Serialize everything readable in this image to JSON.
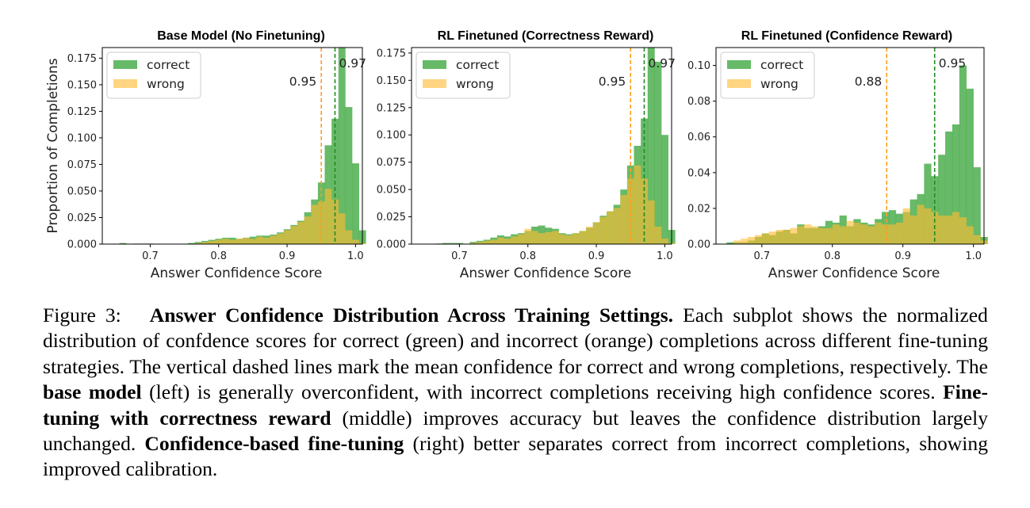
{
  "chart_data": [
    {
      "type": "bar",
      "title": "Base Model (No Finetuning)",
      "xlabel": "Answer Confidence Score",
      "ylabel": "Proportion of Completions",
      "xlim": [
        0.63,
        1.01
      ],
      "ylim": [
        0,
        0.185
      ],
      "xticks": [
        0.7,
        0.8,
        0.9,
        1.0
      ],
      "xtick_labels": [
        "0.7",
        "0.8",
        "0.9",
        "1.0"
      ],
      "yticks": [
        0,
        0.025,
        0.05,
        0.075,
        0.1,
        0.125,
        0.15,
        0.175
      ],
      "ytick_labels": [
        "0.000",
        "0.025",
        "0.050",
        "0.075",
        "0.100",
        "0.125",
        "0.150",
        "0.175"
      ],
      "grid": false,
      "legend_position": "top-left",
      "bin_start": 0.655,
      "bin_width": 0.01,
      "series": [
        {
          "name": "correct",
          "color": "#2ca02c",
          "values": [
            0.001,
            0,
            0.0005,
            0.0005,
            0.0005,
            0,
            0,
            0,
            0,
            0,
            0.001,
            0.002,
            0.003,
            0.004,
            0.005,
            0.006,
            0.006,
            0.005,
            0.006,
            0.007,
            0.008,
            0.008,
            0.009,
            0.011,
            0.014,
            0.018,
            0.022,
            0.03,
            0.042,
            0.058,
            0.093,
            0.118,
            0.187,
            0.129,
            0.076,
            0.013
          ]
        },
        {
          "name": "wrong",
          "color": "#ffbb33",
          "values": [
            0,
            0,
            0,
            0,
            0,
            0,
            0,
            0,
            0,
            0,
            0,
            0.001,
            0.002,
            0.003,
            0.004,
            0.005,
            0.004,
            0.005,
            0.006,
            0.005,
            0.007,
            0.006,
            0.008,
            0.01,
            0.013,
            0.017,
            0.021,
            0.026,
            0.037,
            0.04,
            0.052,
            0.042,
            0.029,
            0.013,
            0.004,
            0.001
          ]
        }
      ],
      "mean_lines": [
        {
          "series": "wrong",
          "x": 0.95,
          "label": "0.95",
          "color": "#ff9f1a"
        },
        {
          "series": "correct",
          "x": 0.97,
          "label": "0.97",
          "color": "#228b22"
        }
      ]
    },
    {
      "type": "bar",
      "title": "RL Finetuned (Correctness Reward)",
      "xlabel": "Answer Confidence Score",
      "ylabel": "",
      "xlim": [
        0.63,
        1.01
      ],
      "ylim": [
        0,
        0.18
      ],
      "xticks": [
        0.7,
        0.8,
        0.9,
        1.0
      ],
      "xtick_labels": [
        "0.7",
        "0.8",
        "0.9",
        "1.0"
      ],
      "yticks": [
        0,
        0.025,
        0.05,
        0.075,
        0.1,
        0.125,
        0.15,
        0.175
      ],
      "ytick_labels": [
        "0.000",
        "0.025",
        "0.050",
        "0.075",
        "0.100",
        "0.125",
        "0.150",
        "0.175"
      ],
      "grid": false,
      "legend_position": "top-left",
      "bin_start": 0.655,
      "bin_width": 0.01,
      "series": [
        {
          "name": "correct",
          "color": "#2ca02c",
          "values": [
            0,
            0.0005,
            0.001,
            0.001,
            0.001,
            0,
            0.002,
            0.003,
            0.004,
            0.006,
            0.008,
            0.007,
            0.009,
            0.01,
            0.012,
            0.016,
            0.017,
            0.015,
            0.014,
            0.01,
            0.009,
            0.01,
            0.012,
            0.015,
            0.02,
            0.026,
            0.03,
            0.036,
            0.05,
            0.072,
            0.09,
            0.115,
            0.182,
            0.167,
            0.1,
            0.013
          ]
        },
        {
          "name": "wrong",
          "color": "#ffbb33",
          "values": [
            0,
            0,
            0,
            0,
            0,
            0,
            0.001,
            0.002,
            0.003,
            0.004,
            0.006,
            0.005,
            0.007,
            0.009,
            0.014,
            0.012,
            0.01,
            0.011,
            0.012,
            0.009,
            0.008,
            0.01,
            0.012,
            0.016,
            0.02,
            0.025,
            0.03,
            0.033,
            0.045,
            0.06,
            0.072,
            0.06,
            0.04,
            0.016,
            0.005,
            0.001
          ]
        }
      ],
      "mean_lines": [
        {
          "series": "wrong",
          "x": 0.95,
          "label": "0.95",
          "color": "#ff9f1a"
        },
        {
          "series": "correct",
          "x": 0.97,
          "label": "0.97",
          "color": "#228b22"
        }
      ]
    },
    {
      "type": "bar",
      "title": "RL Finetuned (Confidence Reward)",
      "xlabel": "Answer Confidence Score",
      "ylabel": "",
      "xlim": [
        0.635,
        1.015
      ],
      "ylim": [
        0,
        0.11
      ],
      "xticks": [
        0.7,
        0.8,
        0.9,
        1.0
      ],
      "xtick_labels": [
        "0.7",
        "0.8",
        "0.9",
        "1.0"
      ],
      "yticks": [
        0,
        0.02,
        0.04,
        0.06,
        0.08,
        0.1
      ],
      "ytick_labels": [
        "0.00",
        "0.02",
        "0.04",
        "0.06",
        "0.08",
        "0.10"
      ],
      "grid": false,
      "legend_position": "top-left",
      "bin_start": 0.65,
      "bin_width": 0.01,
      "series": [
        {
          "name": "correct",
          "color": "#2ca02c",
          "values": [
            0.001,
            0.001,
            0.001,
            0.002,
            0.004,
            0.006,
            0.005,
            0.007,
            0.008,
            0.006,
            0.011,
            0.009,
            0.009,
            0.01,
            0.013,
            0.012,
            0.016,
            0.01,
            0.014,
            0.012,
            0.011,
            0.014,
            0.018,
            0.019,
            0.017,
            0.018,
            0.025,
            0.028,
            0.045,
            0.038,
            0.05,
            0.063,
            0.067,
            0.1,
            0.087,
            0.043,
            0.004
          ]
        },
        {
          "name": "wrong",
          "color": "#ffbb33",
          "values": [
            0,
            0.002,
            0.003,
            0.004,
            0.005,
            0.006,
            0.007,
            0.008,
            0.008,
            0.009,
            0.01,
            0.011,
            0.01,
            0.009,
            0.009,
            0.011,
            0.01,
            0.013,
            0.012,
            0.011,
            0.01,
            0.012,
            0.011,
            0.011,
            0.012,
            0.02,
            0.016,
            0.022,
            0.02,
            0.018,
            0.016,
            0.016,
            0.018,
            0.015,
            0.01,
            0.005,
            0.002
          ]
        }
      ],
      "mean_lines": [
        {
          "series": "wrong",
          "x": 0.877,
          "label": "0.88",
          "color": "#ff9f1a"
        },
        {
          "series": "correct",
          "x": 0.945,
          "label": "0.95",
          "color": "#228b22"
        }
      ]
    }
  ],
  "caption": {
    "prefix": "Figure 3:",
    "bold_title": "Answer Confidence Distribution Across Training Settings.",
    "text1": " Each subplot shows the normalized distribution of confdence scores for correct (green) and incorrect (orange) completions across different fine-tuning strategies. The vertical dashed lines mark the mean confidence for correct and wrong completions, respectively. The ",
    "bold1": "base model",
    "text2": " (left) is generally overconfident, with incorrect completions receiving high confidence scores. ",
    "bold2": "Fine-tuning with correctness reward",
    "text3": " (middle) improves accuracy but leaves the confidence distribution largely unchanged. ",
    "bold3": "Confidence-based fine-tuning",
    "text4": " (right) better separates correct from incorrect completions, showing improved calibration."
  }
}
